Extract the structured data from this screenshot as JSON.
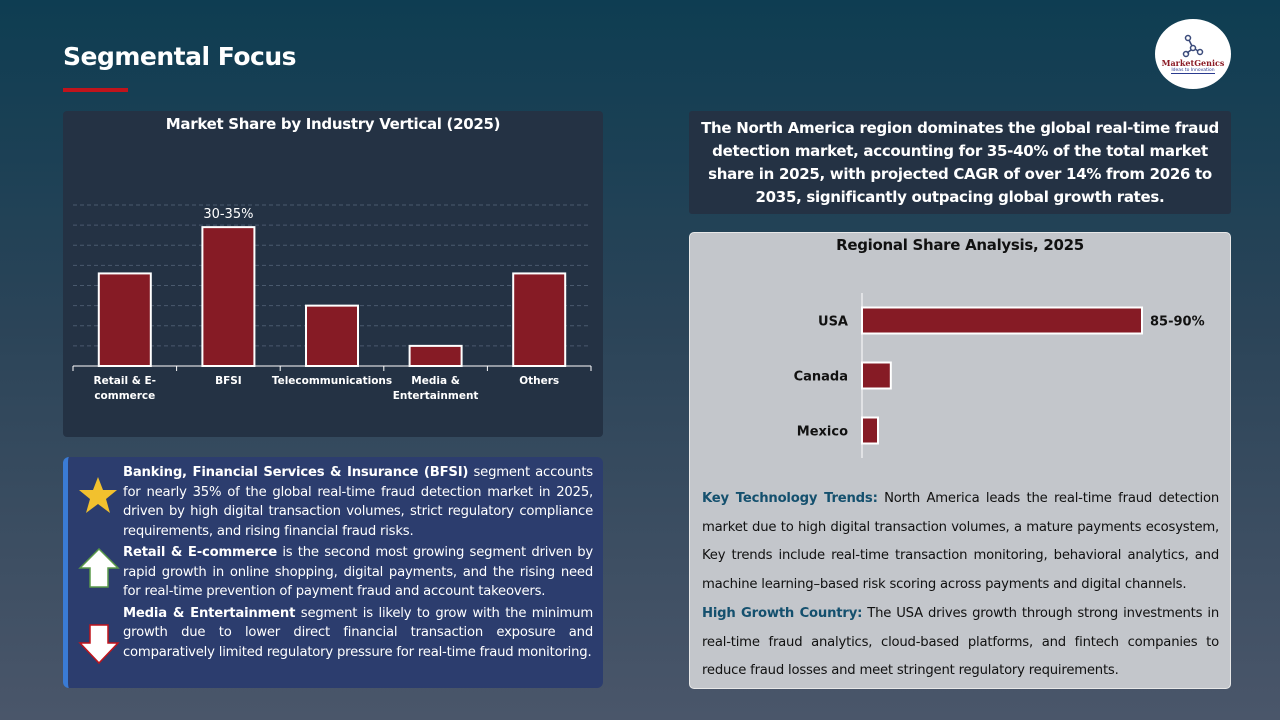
{
  "page": {
    "title": "Segmental Focus"
  },
  "logo": {
    "name": "MarketGenics",
    "tagline": "Ideas to Innovation"
  },
  "chart_data": [
    {
      "type": "bar",
      "title": "Market Share by Industry Vertical (2025)",
      "categories": [
        "Retail & E-commerce",
        "BFSI",
        "Telecommunications",
        "Media & Entertainment",
        "Others"
      ],
      "values": [
        23,
        34.5,
        15,
        5,
        23
      ],
      "data_labels": [
        "",
        "30-35%",
        "",
        "",
        ""
      ],
      "ylim": [
        0,
        40
      ],
      "grid": true,
      "bar_color": "#861b25"
    },
    {
      "type": "bar",
      "orientation": "horizontal",
      "title": "Regional Share Analysis, 2025",
      "categories": [
        "USA",
        "Canada",
        "Mexico"
      ],
      "values": [
        87.5,
        9,
        5
      ],
      "data_labels": [
        "85-90%",
        "",
        ""
      ],
      "xlim": [
        0,
        100
      ],
      "grid": false,
      "bar_color": "#861b25"
    }
  ],
  "segments": [
    {
      "icon": "star-icon",
      "bold": "Banking, Financial Services & Insurance (BFSI)",
      "text": " segment accounts for nearly 35% of the global real-time fraud detection market in 2025, driven by high digital transaction volumes, strict regulatory compliance requirements, and rising financial fraud risks."
    },
    {
      "icon": "arrow-up-icon",
      "bold": "Retail & E-commerce",
      "text": " is the second most growing segment driven by rapid growth in online shopping, digital payments, and the rising need for real-time prevention of payment fraud and account takeovers."
    },
    {
      "icon": "arrow-down-icon",
      "bold": "Media & Entertainment",
      "text": " segment is likely to grow with the minimum growth due to lower direct financial transaction exposure and comparatively limited regulatory pressure for real-time fraud monitoring."
    }
  ],
  "summary": "The North America region dominates the global real-time fraud detection market, accounting for 35-40% of the total market share in 2025, with projected CAGR of over 14% from 2026 to 2035, significantly outpacing global growth rates.",
  "trends": [
    {
      "bold": "Key Technology Trends:",
      "text": " North America leads the real-time fraud detection market due to high digital transaction volumes, a mature payments ecosystem, Key trends include real-time transaction monitoring, behavioral analytics, and machine learning–based risk scoring across payments and digital channels."
    },
    {
      "bold": "High Growth Country:",
      "text": " The USA drives growth through strong investments in real-time fraud analytics, cloud-based platforms, and fintech companies to reduce fraud losses and meet stringent regulatory requirements."
    }
  ]
}
